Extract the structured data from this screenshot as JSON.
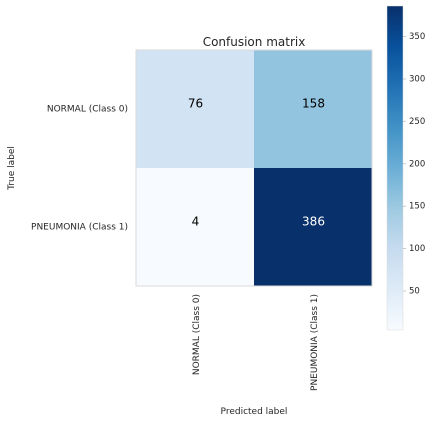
{
  "chart_data": {
    "type": "heatmap",
    "title": "Confusion matrix",
    "xlabel": "Predicted label",
    "ylabel": "True label",
    "row_labels": [
      "NORMAL (Class 0)",
      "PNEUMONIA (Class 1)"
    ],
    "col_labels": [
      "NORMAL (Class 0)",
      "PNEUMONIA (Class 1)"
    ],
    "values": [
      [
        76,
        158
      ],
      [
        4,
        386
      ]
    ],
    "colormap": "Blues",
    "colorbar": {
      "min": 4,
      "max": 386,
      "ticks": [
        50,
        100,
        150,
        200,
        250,
        300,
        350
      ]
    },
    "cell_text_colors": {
      "light": "#000000",
      "dark": "#ffffff"
    },
    "grid": false
  }
}
